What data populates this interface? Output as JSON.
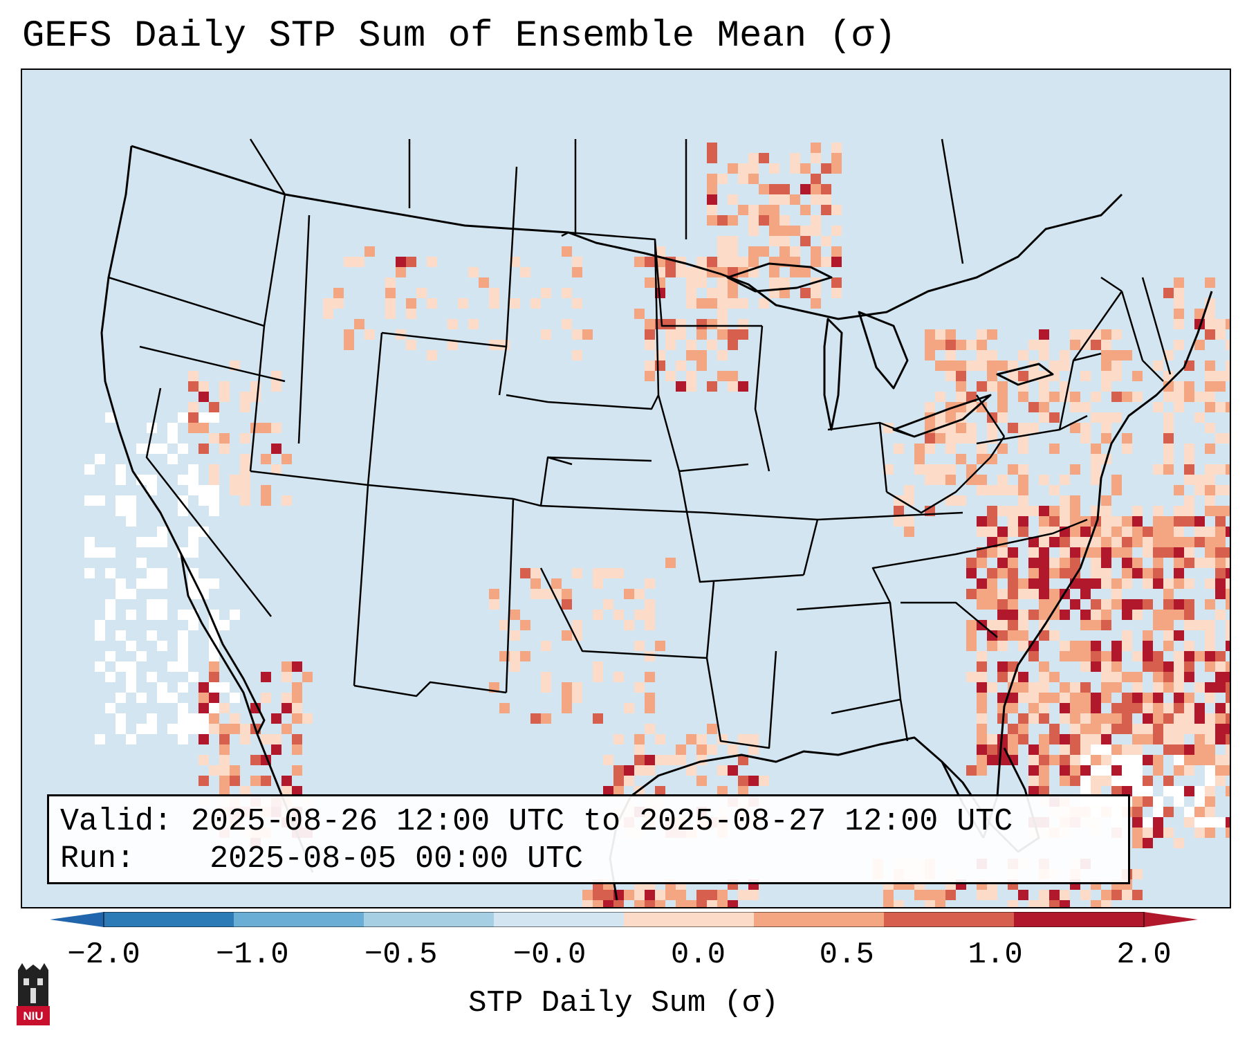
{
  "title": "GEFS Daily STP Sum of Ensemble Mean (σ)",
  "info": {
    "valid_label": "Valid:",
    "valid_value": "2025-08-26 12:00 UTC to 2025-08-27 12:00 UTC",
    "run_label": "Run:",
    "run_value": "2025-08-05 00:00 UTC"
  },
  "colorbar": {
    "label": "STP Daily Sum (σ)",
    "ticks": [
      "−2.0",
      "−1.0",
      "−0.5",
      "−0.0",
      "0.0",
      "0.5",
      "1.0",
      "2.0"
    ],
    "colors": [
      "#2c7bb6",
      "#6aaed6",
      "#a6cfe4",
      "#d2e5f0",
      "#fcdcc9",
      "#f4a582",
      "#d6604d",
      "#b2182b"
    ],
    "extend_low_color": "#2166ac",
    "extend_high_color": "#b2182b"
  },
  "logo": {
    "text": "NIU",
    "name": "Northern Illinois University"
  },
  "map": {
    "region": "Continental United States, Mexico and Gulf of Mexico",
    "background_color": "#d2e5f0",
    "hotspots": [
      {
        "area": "Western Atlantic off Carolinas",
        "category": "1.0 to 2.0"
      },
      {
        "area": "Great Lakes / Minnesota corridor",
        "category": "0.5 to 1.0"
      },
      {
        "area": "Gulf of California",
        "category": "1.0 to 2.0"
      },
      {
        "area": "Texas Gulf coast",
        "category": "0.5 to 1.0"
      }
    ]
  }
}
